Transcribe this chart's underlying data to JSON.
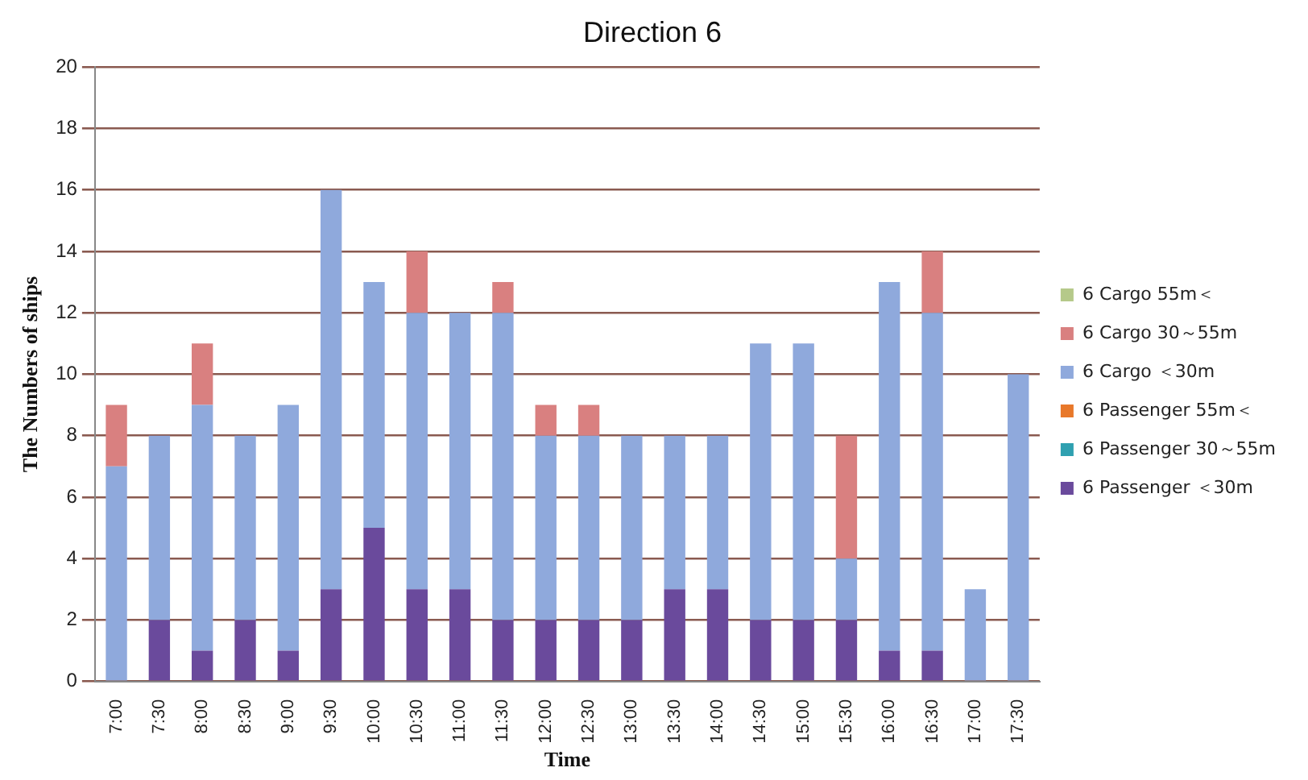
{
  "chart_data": {
    "type": "bar",
    "title": "Direction 6",
    "xlabel": "Time",
    "ylabel": "The Numbers of ships",
    "categories": [
      "7:00",
      "7:30",
      "8:00",
      "8:30",
      "9:00",
      "9:30",
      "10:00",
      "10:30",
      "11:00",
      "11:30",
      "12:00",
      "12:30",
      "13:00",
      "13:30",
      "14:00",
      "14:30",
      "15:00",
      "15:30",
      "16:00",
      "16:30",
      "17:00",
      "17:30"
    ],
    "stacked": true,
    "ylim": [
      0,
      20
    ],
    "yticks": [
      0,
      2,
      4,
      6,
      8,
      10,
      12,
      14,
      16,
      18,
      20
    ],
    "grid": "y",
    "legend": "right",
    "series": [
      {
        "name": "6 Passenger ＜30m",
        "color": "#6a4a9c",
        "values": [
          0,
          2,
          1,
          2,
          1,
          3,
          5,
          3,
          3,
          2,
          2,
          2,
          2,
          3,
          3,
          2,
          2,
          2,
          1,
          1,
          0,
          0
        ]
      },
      {
        "name": "6 Passenger 30～55m",
        "color": "#2fa0b0",
        "values": [
          0,
          0,
          0,
          0,
          0,
          0,
          0,
          0,
          0,
          0,
          0,
          0,
          0,
          0,
          0,
          0,
          0,
          0,
          0,
          0,
          0,
          0
        ]
      },
      {
        "name": "6 Passenger 55m＜",
        "color": "#e8782a",
        "values": [
          0,
          0,
          0,
          0,
          0,
          0,
          0,
          0,
          0,
          0,
          0,
          0,
          0,
          0,
          0,
          0,
          0,
          0,
          0,
          0,
          0,
          0
        ]
      },
      {
        "name": "6 Cargo ＜30m",
        "color": "#8fa9dc",
        "values": [
          7,
          6,
          8,
          6,
          8,
          13,
          8,
          9,
          9,
          10,
          6,
          6,
          6,
          5,
          5,
          9,
          9,
          2,
          12,
          11,
          3,
          10
        ]
      },
      {
        "name": "6 Cargo 30～55m",
        "color": "#d98080",
        "values": [
          2,
          0,
          2,
          0,
          0,
          0,
          0,
          2,
          0,
          1,
          1,
          1,
          0,
          0,
          0,
          0,
          0,
          4,
          0,
          2,
          0,
          0
        ]
      },
      {
        "name": "6 Cargo 55m＜",
        "color": "#b5c98a",
        "values": [
          0,
          0,
          0,
          0,
          0,
          0,
          0,
          0,
          0,
          0,
          0,
          0,
          0,
          0,
          0,
          0,
          0,
          0,
          0,
          0,
          0,
          0
        ]
      }
    ]
  }
}
